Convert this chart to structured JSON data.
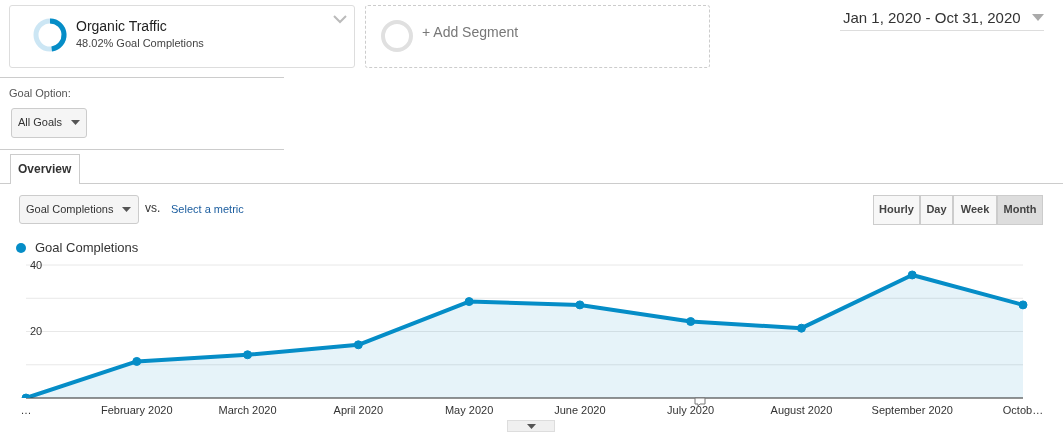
{
  "chart_data": {
    "type": "area",
    "categories": [
      "…",
      "February 2020",
      "March 2020",
      "April 2020",
      "May 2020",
      "June 2020",
      "July 2020",
      "August 2020",
      "September 2020",
      "Octob…"
    ],
    "series": [
      {
        "name": "Goal Completions",
        "color": "#058dc7",
        "values": [
          0,
          11,
          13,
          16,
          29,
          28,
          23,
          21,
          37,
          28
        ]
      }
    ],
    "ylim": [
      0,
      40
    ],
    "yticks": [
      {
        "value": 0,
        "label": null
      },
      {
        "value": 10,
        "label": null
      },
      20,
      {
        "value": 30,
        "label": null
      },
      40
    ],
    "grid": "y",
    "legend": "top left",
    "marker": "circle",
    "annotations": [
      "Organic Traffic",
      "48.02% Goal Completions",
      "+ Add Segment",
      "Jan 1, 2020 - Oct 31, 2020",
      "Goal Option:",
      "All Goals",
      "Overview",
      "Goal Completions",
      "vs.",
      "Select a metric",
      "Hourly",
      "Day",
      "Week",
      "Month"
    ]
  }
}
